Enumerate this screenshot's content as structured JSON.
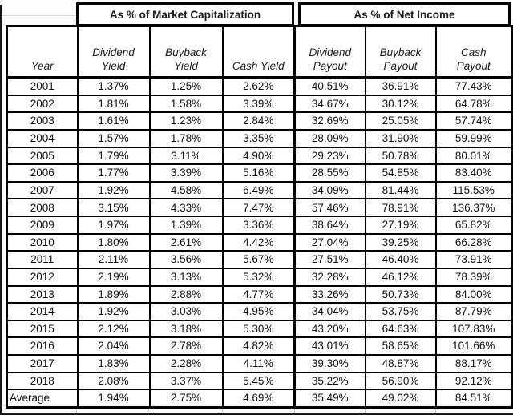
{
  "colors": {
    "border": "#000000",
    "text": "#111111",
    "background": "#ffffff"
  },
  "chart_data": {
    "type": "table",
    "title": "",
    "group_headers": [
      "As % of Market Capitalization",
      "As % of Net Income"
    ],
    "columns": [
      "Year",
      "Dividend\nYield",
      "Buyback\nYield",
      "Cash Yield",
      "Dividend\nPayout",
      "Buyback\nPayout",
      "Cash\nPayout"
    ],
    "rows": [
      [
        "2001",
        "1.37%",
        "1.25%",
        "2.62%",
        "40.51%",
        "36.91%",
        "77.43%"
      ],
      [
        "2002",
        "1.81%",
        "1.58%",
        "3.39%",
        "34.67%",
        "30.12%",
        "64.78%"
      ],
      [
        "2003",
        "1.61%",
        "1.23%",
        "2.84%",
        "32.69%",
        "25.05%",
        "57.74%"
      ],
      [
        "2004",
        "1.57%",
        "1.78%",
        "3.35%",
        "28.09%",
        "31.90%",
        "59.99%"
      ],
      [
        "2005",
        "1.79%",
        "3.11%",
        "4.90%",
        "29.23%",
        "50.78%",
        "80.01%"
      ],
      [
        "2006",
        "1.77%",
        "3.39%",
        "5.16%",
        "28.55%",
        "54.85%",
        "83.40%"
      ],
      [
        "2007",
        "1.92%",
        "4.58%",
        "6.49%",
        "34.09%",
        "81.44%",
        "115.53%"
      ],
      [
        "2008",
        "3.15%",
        "4.33%",
        "7.47%",
        "57.46%",
        "78.91%",
        "136.37%"
      ],
      [
        "2009",
        "1.97%",
        "1.39%",
        "3.36%",
        "38.64%",
        "27.19%",
        "65.82%"
      ],
      [
        "2010",
        "1.80%",
        "2.61%",
        "4.42%",
        "27.04%",
        "39.25%",
        "66.28%"
      ],
      [
        "2011",
        "2.11%",
        "3.56%",
        "5.67%",
        "27.51%",
        "46.40%",
        "73.91%"
      ],
      [
        "2012",
        "2.19%",
        "3.13%",
        "5.32%",
        "32.28%",
        "46.12%",
        "78.39%"
      ],
      [
        "2013",
        "1.89%",
        "2.88%",
        "4.77%",
        "33.26%",
        "50.73%",
        "84.00%"
      ],
      [
        "2014",
        "1.92%",
        "3.03%",
        "4.95%",
        "34.04%",
        "53.75%",
        "87.79%"
      ],
      [
        "2015",
        "2.12%",
        "3.18%",
        "5.30%",
        "43.20%",
        "64.63%",
        "107.83%"
      ],
      [
        "2016",
        "2.04%",
        "2.78%",
        "4.82%",
        "43.01%",
        "58.65%",
        "101.66%"
      ],
      [
        "2017",
        "1.83%",
        "2.28%",
        "4.11%",
        "39.30%",
        "48.87%",
        "88.17%"
      ],
      [
        "2018",
        "2.08%",
        "3.37%",
        "5.45%",
        "35.22%",
        "56.90%",
        "92.12%"
      ]
    ],
    "average_row": [
      "Average",
      "1.94%",
      "2.75%",
      "4.69%",
      "35.49%",
      "49.02%",
      "84.51%"
    ]
  }
}
